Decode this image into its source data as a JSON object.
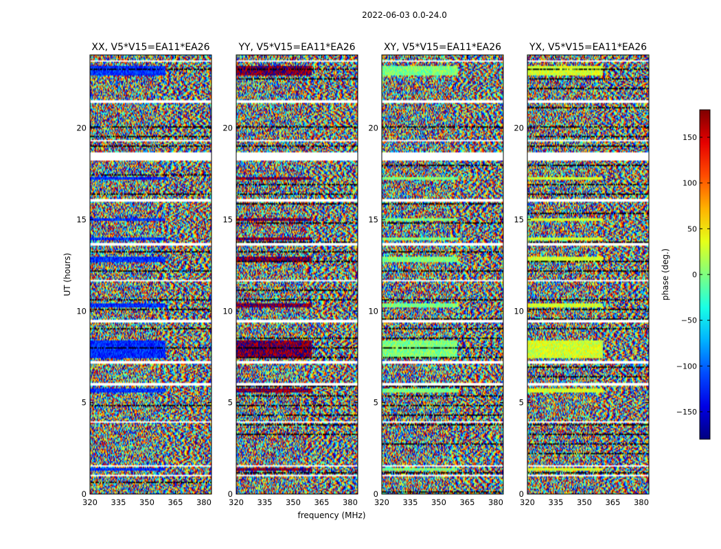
{
  "figure_title": "2022-06-03 0.0-24.0",
  "chart_data": {
    "type": "heatmap",
    "title": "2022-06-03 0.0-24.0",
    "xlabel": "frequency (MHz)",
    "ylabel": "UT (hours)",
    "xlim": [
      320,
      384
    ],
    "ylim": [
      0,
      24
    ],
    "xticks": [
      320,
      335,
      350,
      365,
      380
    ],
    "yticks": [
      0,
      5,
      10,
      15,
      20
    ],
    "panels": [
      {
        "title": "XX, V5*V15=EA11*EA26",
        "base_phase": -120
      },
      {
        "title": "YY, V5*V15=EA11*EA26",
        "base_phase": 175
      },
      {
        "title": "XY, V5*V15=EA11*EA26",
        "base_phase": 0
      },
      {
        "title": "YX, V5*V15=EA11*EA26",
        "base_phase": 30
      }
    ],
    "colorbar": {
      "label": "phase (deg.)",
      "range": [
        -180,
        180
      ],
      "ticks": [
        150,
        100,
        50,
        0,
        -50,
        -100,
        -150
      ],
      "colormap": "jet"
    },
    "flagged_gaps_ut": [
      [
        0.95,
        1.05
      ],
      [
        1.5,
        1.58
      ],
      [
        3.9,
        4.0
      ],
      [
        5.95,
        6.05
      ],
      [
        7.1,
        7.25
      ],
      [
        9.4,
        9.55
      ],
      [
        11.6,
        11.7
      ],
      [
        13.6,
        13.72
      ],
      [
        16.0,
        16.1
      ],
      [
        18.2,
        18.7
      ],
      [
        19.25,
        19.35
      ],
      [
        21.4,
        21.5
      ],
      [
        23.65,
        23.72
      ]
    ],
    "strong_phase_bands_ut": [
      [
        1.25,
        1.45
      ],
      [
        5.55,
        5.75
      ],
      [
        7.45,
        8.4
      ],
      [
        10.2,
        10.45
      ],
      [
        12.7,
        13.0
      ],
      [
        13.85,
        14.05
      ],
      [
        14.9,
        15.1
      ],
      [
        17.2,
        17.35
      ],
      [
        22.9,
        23.4
      ]
    ]
  }
}
